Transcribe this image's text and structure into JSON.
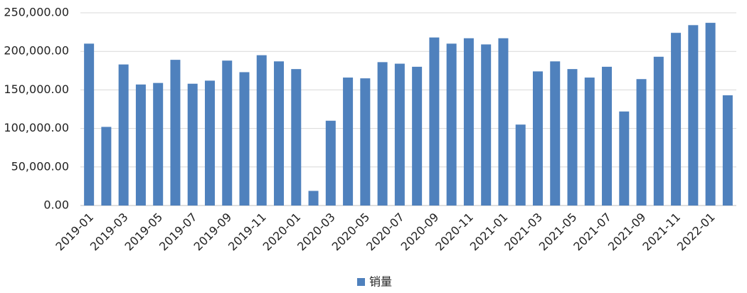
{
  "chart_data": {
    "type": "bar",
    "categories": [
      "2019-01",
      null,
      "2019-03",
      null,
      "2019-05",
      null,
      "2019-07",
      null,
      "2019-09",
      null,
      "2019-11",
      null,
      "2020-01",
      null,
      "2020-03",
      null,
      "2020-05",
      null,
      "2020-07",
      null,
      "2020-09",
      null,
      "2020-11",
      null,
      "2021-01",
      null,
      "2021-03",
      null,
      "2021-05",
      null,
      "2021-07",
      null,
      "2021-09",
      null,
      "2021-11",
      null,
      "2022-01",
      null
    ],
    "series": [
      {
        "name": "销量",
        "color": "#4f81bd",
        "values": [
          210000,
          102000,
          183000,
          157000,
          159000,
          189000,
          158000,
          162000,
          188000,
          173000,
          195000,
          187000,
          177000,
          19000,
          110000,
          166000,
          165000,
          186000,
          184000,
          180000,
          218000,
          210000,
          217000,
          209000,
          217000,
          105000,
          174000,
          187000,
          177000,
          166000,
          180000,
          122000,
          164000,
          193000,
          224000,
          234000,
          237000,
          143000
        ]
      }
    ],
    "ylim": [
      0,
      250000
    ],
    "yticks": [
      {
        "value": 0,
        "label": "0.00"
      },
      {
        "value": 50000,
        "label": "50,000.00"
      },
      {
        "value": 100000,
        "label": "100,000.00"
      },
      {
        "value": 150000,
        "label": "150,000.00"
      },
      {
        "value": 200000,
        "label": "200,000.00"
      },
      {
        "value": 250000,
        "label": "250,000.00"
      }
    ],
    "grid": true,
    "legend": "bottom"
  }
}
